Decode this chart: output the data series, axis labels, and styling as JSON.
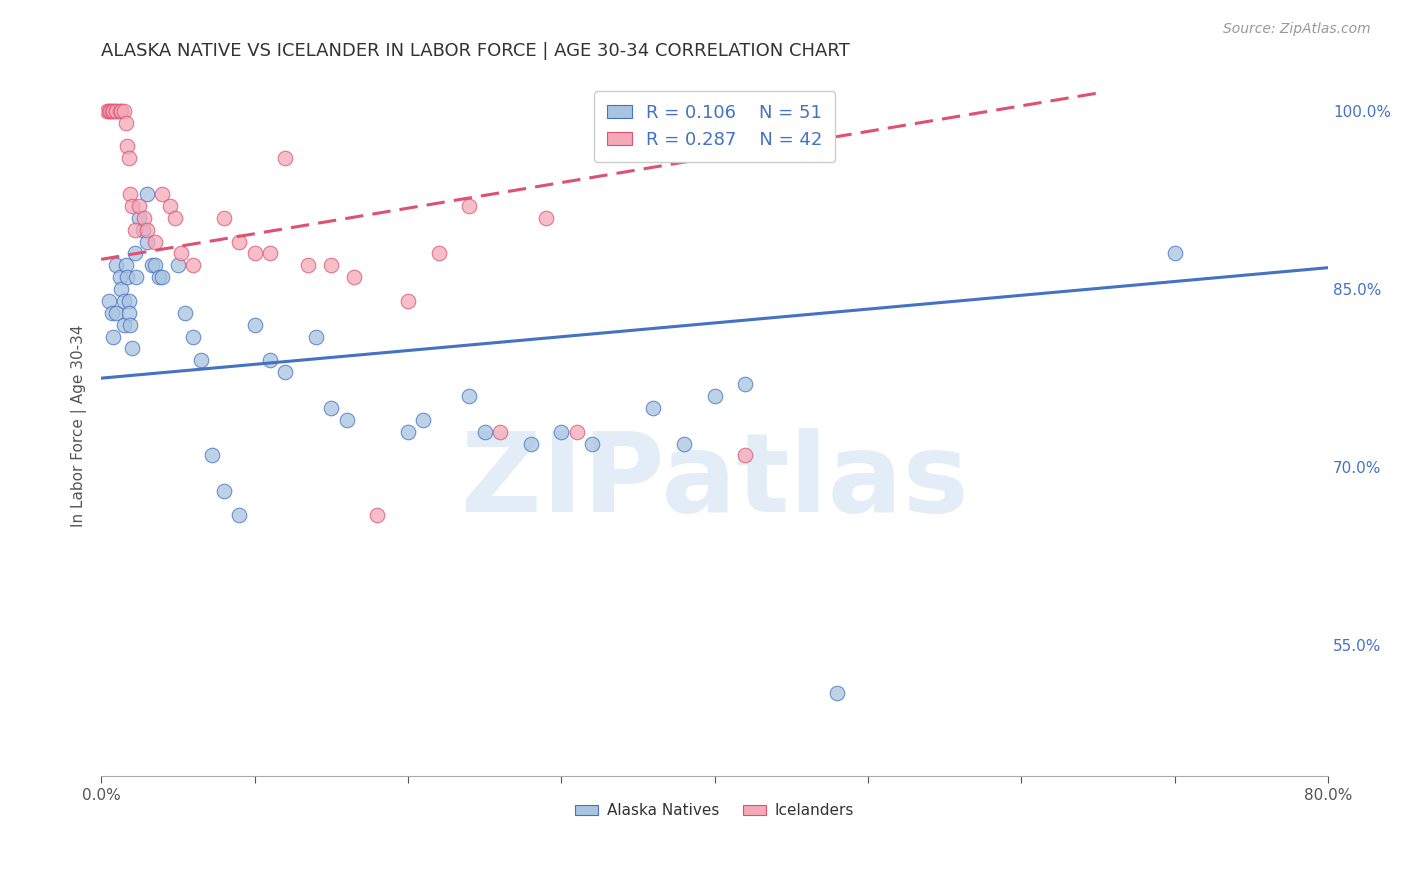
{
  "title": "ALASKA NATIVE VS ICELANDER IN LABOR FORCE | AGE 30-34 CORRELATION CHART",
  "source": "Source: ZipAtlas.com",
  "ylabel": "In Labor Force | Age 30-34",
  "watermark": "ZIPatlas",
  "xlim": [
    0.0,
    0.8
  ],
  "ylim": [
    0.44,
    1.03
  ],
  "xtick_positions": [
    0.0,
    0.1,
    0.2,
    0.3,
    0.4,
    0.5,
    0.6,
    0.7,
    0.8
  ],
  "xtick_labels": [
    "0.0%",
    "",
    "",
    "",
    "",
    "",
    "",
    "",
    "80.0%"
  ],
  "ytick_vals_right": [
    1.0,
    0.85,
    0.7,
    0.55
  ],
  "ytick_labels_right": [
    "100.0%",
    "85.0%",
    "70.0%",
    "55.0%"
  ],
  "legend_r_blue": "R = 0.106",
  "legend_n_blue": "N = 51",
  "legend_r_pink": "R = 0.287",
  "legend_n_pink": "N = 42",
  "blue_color": "#A8C4E0",
  "pink_color": "#F4A8B8",
  "line_blue": "#4472C4",
  "line_pink": "#E05070",
  "blue_scatter_x": [
    0.005,
    0.007,
    0.008,
    0.01,
    0.01,
    0.012,
    0.013,
    0.015,
    0.015,
    0.016,
    0.017,
    0.018,
    0.018,
    0.019,
    0.02,
    0.022,
    0.023,
    0.025,
    0.027,
    0.03,
    0.03,
    0.033,
    0.035,
    0.038,
    0.04,
    0.05,
    0.055,
    0.06,
    0.065,
    0.072,
    0.08,
    0.09,
    0.1,
    0.11,
    0.12,
    0.14,
    0.15,
    0.16,
    0.2,
    0.21,
    0.24,
    0.25,
    0.28,
    0.3,
    0.32,
    0.36,
    0.38,
    0.4,
    0.42,
    0.48,
    0.7
  ],
  "blue_scatter_y": [
    0.84,
    0.83,
    0.81,
    0.87,
    0.83,
    0.86,
    0.85,
    0.84,
    0.82,
    0.87,
    0.86,
    0.84,
    0.83,
    0.82,
    0.8,
    0.88,
    0.86,
    0.91,
    0.9,
    0.93,
    0.89,
    0.87,
    0.87,
    0.86,
    0.86,
    0.87,
    0.83,
    0.81,
    0.79,
    0.71,
    0.68,
    0.66,
    0.82,
    0.79,
    0.78,
    0.81,
    0.75,
    0.74,
    0.73,
    0.74,
    0.76,
    0.73,
    0.72,
    0.73,
    0.72,
    0.75,
    0.72,
    0.76,
    0.77,
    0.51,
    0.88
  ],
  "pink_scatter_x": [
    0.004,
    0.005,
    0.006,
    0.007,
    0.008,
    0.01,
    0.01,
    0.012,
    0.013,
    0.015,
    0.016,
    0.017,
    0.018,
    0.019,
    0.02,
    0.022,
    0.025,
    0.028,
    0.03,
    0.035,
    0.04,
    0.045,
    0.048,
    0.052,
    0.06,
    0.08,
    0.09,
    0.1,
    0.11,
    0.12,
    0.135,
    0.15,
    0.165,
    0.18,
    0.2,
    0.22,
    0.24,
    0.26,
    0.29,
    0.31,
    0.37,
    0.42
  ],
  "pink_scatter_y": [
    1.0,
    1.0,
    1.0,
    1.0,
    1.0,
    1.0,
    1.0,
    1.0,
    1.0,
    1.0,
    0.99,
    0.97,
    0.96,
    0.93,
    0.92,
    0.9,
    0.92,
    0.91,
    0.9,
    0.89,
    0.93,
    0.92,
    0.91,
    0.88,
    0.87,
    0.91,
    0.89,
    0.88,
    0.88,
    0.96,
    0.87,
    0.87,
    0.86,
    0.66,
    0.84,
    0.88,
    0.92,
    0.73,
    0.91,
    0.73,
    1.0,
    0.71
  ],
  "blue_line_x": [
    0.0,
    0.8
  ],
  "blue_line_y": [
    0.775,
    0.868
  ],
  "pink_line_x": [
    0.0,
    0.65
  ],
  "pink_line_y": [
    0.875,
    1.015
  ],
  "grid_color": "#DDDDDD",
  "background_color": "#FFFFFF"
}
